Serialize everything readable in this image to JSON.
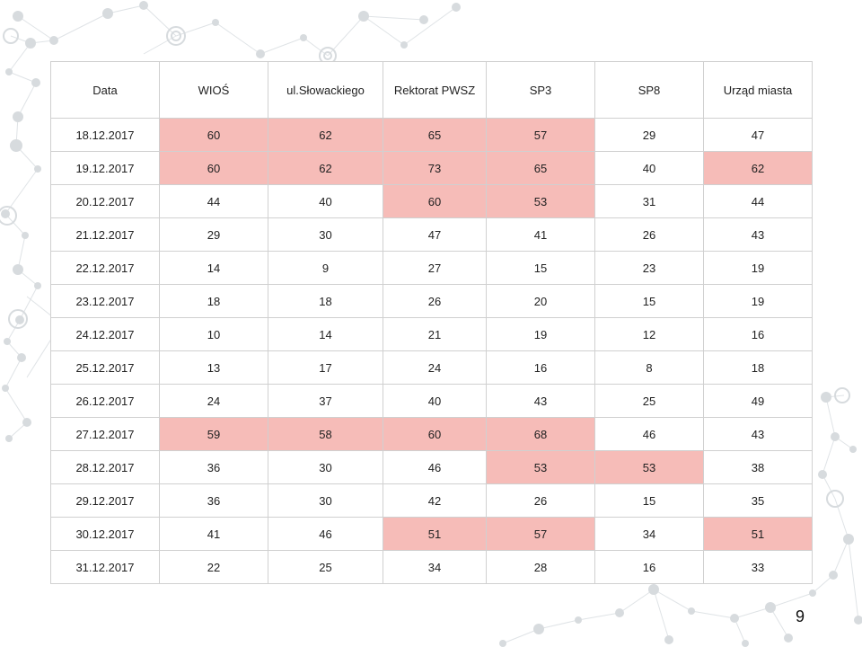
{
  "table": {
    "headers": [
      "Data",
      "WIOŚ",
      "ul.Słowackiego",
      "Rektorat PWSZ",
      "SP3",
      "SP8",
      "Urząd miasta"
    ],
    "rows": [
      [
        "18.12.2017",
        "60",
        "62",
        "65",
        "57",
        "29",
        "47"
      ],
      [
        "19.12.2017",
        "60",
        "62",
        "73",
        "65",
        "40",
        "62"
      ],
      [
        "20.12.2017",
        "44",
        "40",
        "60",
        "53",
        "31",
        "44"
      ],
      [
        "21.12.2017",
        "29",
        "30",
        "47",
        "41",
        "26",
        "43"
      ],
      [
        "22.12.2017",
        "14",
        "9",
        "27",
        "15",
        "23",
        "19"
      ],
      [
        "23.12.2017",
        "18",
        "18",
        "26",
        "20",
        "15",
        "19"
      ],
      [
        "24.12.2017",
        "10",
        "14",
        "21",
        "19",
        "12",
        "16"
      ],
      [
        "25.12.2017",
        "13",
        "17",
        "24",
        "16",
        "8",
        "18"
      ],
      [
        "26.12.2017",
        "24",
        "37",
        "40",
        "43",
        "25",
        "49"
      ],
      [
        "27.12.2017",
        "59",
        "58",
        "60",
        "68",
        "46",
        "43"
      ],
      [
        "28.12.2017",
        "36",
        "30",
        "46",
        "53",
        "53",
        "38"
      ],
      [
        "29.12.2017",
        "36",
        "30",
        "42",
        "26",
        "15",
        "35"
      ],
      [
        "30.12.2017",
        "41",
        "46",
        "51",
        "57",
        "34",
        "51"
      ],
      [
        "31.12.2017",
        "22",
        "25",
        "34",
        "28",
        "16",
        "33"
      ]
    ],
    "highlighted": [
      [
        0,
        1
      ],
      [
        0,
        2
      ],
      [
        0,
        3
      ],
      [
        0,
        4
      ],
      [
        1,
        1
      ],
      [
        1,
        2
      ],
      [
        1,
        3
      ],
      [
        1,
        4
      ],
      [
        1,
        6
      ],
      [
        2,
        3
      ],
      [
        2,
        4
      ],
      [
        9,
        1
      ],
      [
        9,
        2
      ],
      [
        9,
        3
      ],
      [
        9,
        4
      ],
      [
        10,
        4
      ],
      [
        10,
        5
      ],
      [
        12,
        3
      ],
      [
        12,
        4
      ],
      [
        12,
        6
      ]
    ],
    "highlight_color": "#f6bcb8"
  },
  "page_number": "9"
}
